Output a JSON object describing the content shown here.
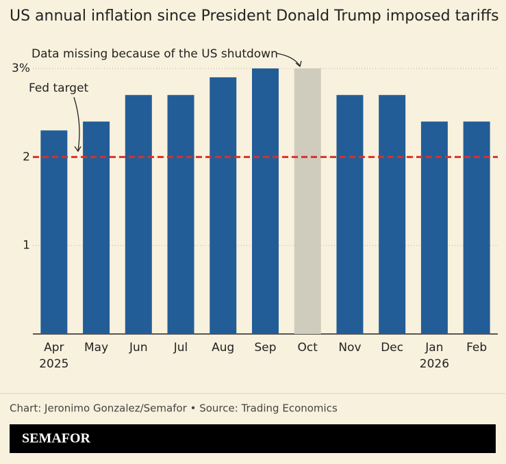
{
  "chart_data": {
    "type": "bar",
    "title": "US annual inflation since President Donald Trump imposed tariffs",
    "categories": [
      "Apr\n2025",
      "May",
      "Jun",
      "Jul",
      "Aug",
      "Sep",
      "Oct",
      "Nov",
      "Dec",
      "Jan\n2026",
      "Feb"
    ],
    "values": [
      2.3,
      2.4,
      2.7,
      2.7,
      2.9,
      3.0,
      3.0,
      2.7,
      2.7,
      2.4,
      2.4
    ],
    "colors": [
      "#235d98",
      "#235d98",
      "#235d98",
      "#235d98",
      "#235d98",
      "#235d98",
      "#cfcbbd",
      "#235d98",
      "#235d98",
      "#235d98",
      "#235d98"
    ],
    "ylim": [
      0,
      3
    ],
    "yticks": [
      1,
      2,
      {
        "value": 3,
        "label": "3%"
      }
    ],
    "grid": true,
    "reference_line": {
      "value": 2,
      "label": "Fed target",
      "color": "#d8312a"
    },
    "annotation": "Data missing because of the US shutdown",
    "source": "Chart: Jeronimo Gonzalez/Semafor • Source: Trading Economics"
  },
  "brand": "SEMAFOR"
}
